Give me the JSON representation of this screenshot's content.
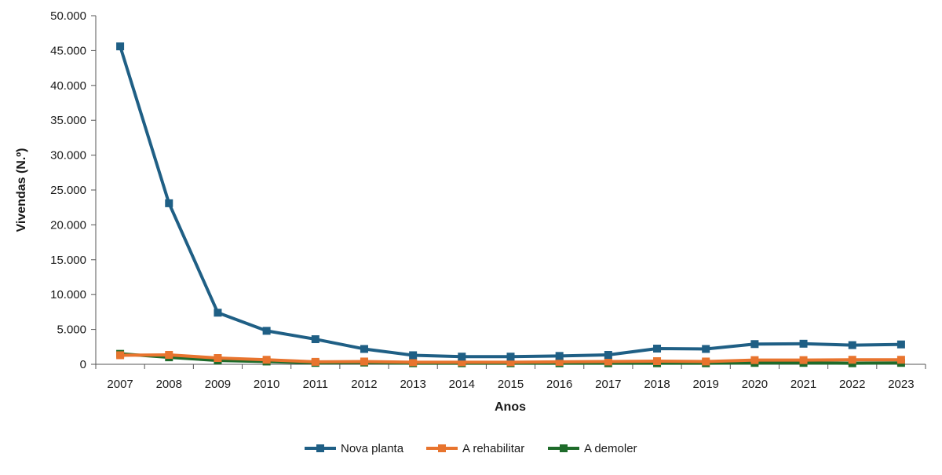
{
  "chart_data": {
    "type": "line",
    "xlabel": "Anos",
    "ylabel": "Vivendas (N.º)",
    "ylim": [
      0,
      50000
    ],
    "yticks": [
      0,
      5000,
      10000,
      15000,
      20000,
      25000,
      30000,
      35000,
      40000,
      45000,
      50000
    ],
    "ytick_labels": [
      "0",
      "5.000",
      "10.000",
      "15.000",
      "20.000",
      "25.000",
      "30.000",
      "35.000",
      "40.000",
      "45.000",
      "50.000"
    ],
    "categories": [
      "2007",
      "2008",
      "2009",
      "2010",
      "2011",
      "2012",
      "2013",
      "2014",
      "2015",
      "2016",
      "2017",
      "2018",
      "2019",
      "2020",
      "2021",
      "2022",
      "2023"
    ],
    "grid": false,
    "legend_position": "bottom",
    "series": [
      {
        "name": "Nova planta",
        "color": "#1f5f85",
        "marker": "square",
        "values": [
          45600,
          23100,
          7400,
          4800,
          3600,
          2200,
          1300,
          1100,
          1100,
          1200,
          1350,
          2250,
          2200,
          2900,
          2950,
          2750,
          2850
        ]
      },
      {
        "name": "A rehabilitar",
        "color": "#e8742e",
        "marker": "square",
        "values": [
          1300,
          1350,
          900,
          650,
          350,
          400,
          300,
          300,
          300,
          350,
          400,
          450,
          400,
          600,
          600,
          650,
          650
        ]
      },
      {
        "name": "A demoler",
        "color": "#1e6b2a",
        "marker": "square",
        "values": [
          1500,
          1000,
          550,
          400,
          200,
          250,
          150,
          150,
          150,
          150,
          150,
          150,
          150,
          200,
          200,
          150,
          200
        ]
      }
    ]
  }
}
